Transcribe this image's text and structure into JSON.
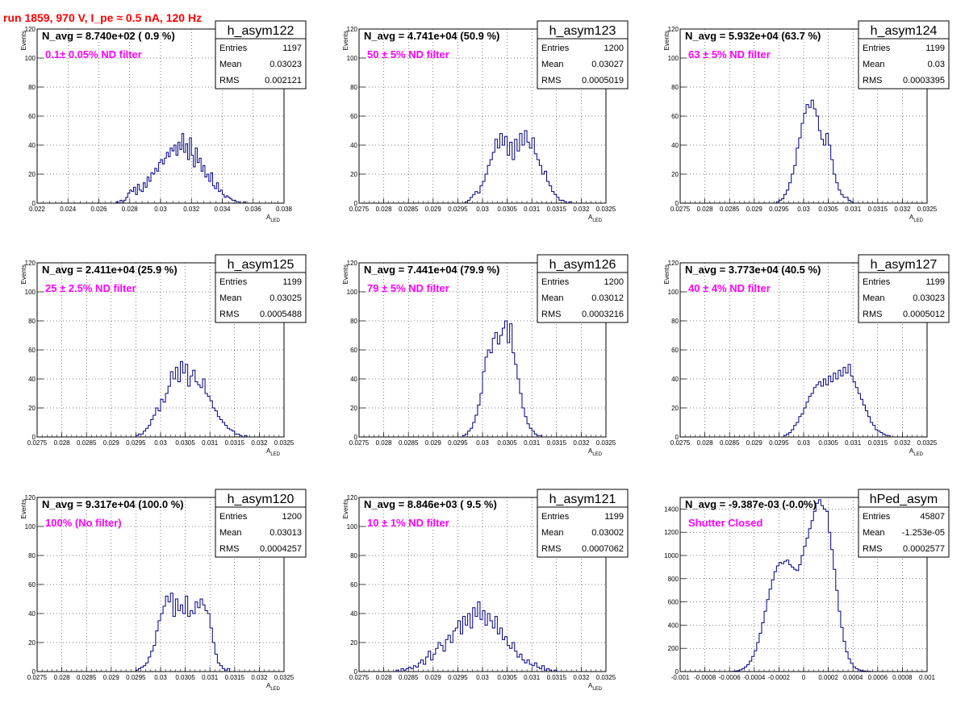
{
  "page_title": "run 1859,   970 V, I_pe ≈ 0.5 nA, 120 Hz",
  "stat_labels": {
    "entries": "Entries",
    "mean": "Mean",
    "rms": "RMS"
  },
  "colors": {
    "hist": "#000080",
    "title": "#ff0000",
    "filter": "#ff00ff",
    "grid": "#000000"
  },
  "chart_data": [
    {
      "type": "bar",
      "name": "h_asym122",
      "nav": "N_avg = 8.740e+02 ( 0.9 %)",
      "filter": "0.1± 0.05% ND filter",
      "entries": "1197",
      "mean": "0.03023",
      "rms": "0.002121",
      "xlim": [
        0.022,
        0.038
      ],
      "ylim": [
        0,
        120
      ],
      "xticks": [
        "0.022",
        "0.024",
        "0.026",
        "0.028",
        "0.03",
        "0.032",
        "0.034",
        "0.036",
        "0.038"
      ],
      "yticks": [
        "0",
        "20",
        "40",
        "60",
        "80",
        "100",
        "120"
      ],
      "xlabel_main": "A",
      "xlabel_sub": "LED",
      "ylabel": "Events",
      "values": [
        0,
        0,
        0,
        0,
        0,
        0,
        0,
        0,
        0,
        0,
        0,
        0,
        0,
        0,
        0,
        0,
        0,
        0,
        0,
        0,
        0,
        0,
        0,
        0,
        0,
        0,
        0,
        0,
        0,
        0,
        0,
        0,
        0,
        0,
        0,
        0,
        0,
        0,
        0,
        0,
        0,
        1,
        0,
        2,
        1,
        2,
        4,
        7,
        9,
        8,
        11,
        6,
        13,
        9,
        8,
        14,
        11,
        18,
        15,
        21,
        20,
        24,
        22,
        28,
        30,
        27,
        31,
        35,
        32,
        38,
        36,
        40,
        33,
        42,
        37,
        48,
        35,
        41,
        30,
        45,
        33,
        25,
        38,
        28,
        31,
        22,
        26,
        18,
        20,
        15,
        21,
        12,
        10,
        14,
        8,
        9,
        6,
        4,
        5,
        4,
        3,
        2,
        2,
        1,
        1,
        0,
        0,
        1,
        0,
        0,
        0,
        0,
        0,
        0,
        0,
        0,
        0,
        0,
        0,
        0,
        0,
        0,
        0,
        0,
        0,
        0,
        0,
        0
      ]
    },
    {
      "type": "bar",
      "name": "h_asym123",
      "nav": "N_avg = 4.741e+04 (50.9 %)",
      "filter": "50 ± 5% ND filter",
      "entries": "1200",
      "mean": "0.03027",
      "rms": "0.0005019",
      "xlim": [
        0.0275,
        0.0325
      ],
      "ylim": [
        0,
        120
      ],
      "xticks": [
        "0.0275",
        "0.028",
        "0.0285",
        "0.029",
        "0.0295",
        "0.03",
        "0.0305",
        "0.031",
        "0.0315",
        "0.032",
        "0.0325"
      ],
      "yticks": [
        "0",
        "20",
        "40",
        "60",
        "80",
        "100",
        "120"
      ],
      "xlabel_main": "A",
      "xlabel_sub": "LED",
      "ylabel": "Events",
      "values": [
        0,
        0,
        0,
        0,
        0,
        0,
        0,
        0,
        0,
        0,
        0,
        0,
        0,
        0,
        0,
        0,
        0,
        0,
        0,
        0,
        0,
        0,
        0,
        0,
        0,
        0,
        0,
        0,
        0,
        0,
        0,
        0,
        0,
        0,
        0,
        0,
        0,
        0,
        0,
        0,
        0,
        0,
        0,
        1,
        2,
        4,
        6,
        8,
        7,
        12,
        15,
        20,
        26,
        30,
        35,
        44,
        38,
        48,
        40,
        46,
        33,
        42,
        30,
        44,
        36,
        48,
        40,
        50,
        42,
        38,
        45,
        34,
        30,
        26,
        20,
        22,
        15,
        12,
        8,
        6,
        4,
        2,
        2,
        1,
        0,
        1,
        0,
        0,
        0,
        0,
        0,
        0,
        0,
        0,
        0,
        0,
        0,
        0,
        0,
        0
      ]
    },
    {
      "type": "bar",
      "name": "h_asym124",
      "nav": "N_avg = 5.932e+04 (63.7 %)",
      "filter": "63 ± 5% ND filter",
      "entries": "1199",
      "mean": "0.03",
      "rms": "0.0003395",
      "xlim": [
        0.0275,
        0.0325
      ],
      "ylim": [
        0,
        120
      ],
      "xticks": [
        "0.0275",
        "0.028",
        "0.0285",
        "0.029",
        "0.0295",
        "0.03",
        "0.0305",
        "0.031",
        "0.0315",
        "0.032",
        "0.0325"
      ],
      "yticks": [
        "0",
        "20",
        "40",
        "60",
        "80",
        "100",
        "120"
      ],
      "xlabel_main": "A",
      "xlabel_sub": "LED",
      "ylabel": "Events",
      "values": [
        0,
        0,
        0,
        0,
        0,
        0,
        0,
        0,
        0,
        0,
        0,
        0,
        0,
        0,
        0,
        0,
        0,
        0,
        0,
        0,
        0,
        0,
        0,
        0,
        0,
        0,
        0,
        0,
        0,
        0,
        0,
        0,
        0,
        0,
        0,
        0,
        0,
        0,
        0,
        1,
        2,
        3,
        6,
        9,
        14,
        20,
        26,
        38,
        45,
        55,
        62,
        68,
        66,
        71,
        65,
        60,
        50,
        44,
        40,
        48,
        40,
        30,
        20,
        14,
        9,
        6,
        4,
        4,
        2,
        1,
        0,
        0,
        0,
        0,
        0,
        0,
        0,
        0,
        0,
        0,
        0,
        0,
        0,
        0,
        0,
        0,
        0,
        0,
        0,
        0,
        0,
        0,
        0,
        0,
        0,
        0,
        0,
        0,
        0,
        0
      ]
    },
    {
      "type": "bar",
      "name": "h_asym125",
      "nav": "N_avg = 2.411e+04 (25.9 %)",
      "filter": "25 ± 2.5% ND filter",
      "entries": "1199",
      "mean": "0.03025",
      "rms": "0.0005488",
      "xlim": [
        0.0275,
        0.0325
      ],
      "ylim": [
        0,
        120
      ],
      "xticks": [
        "0.0275",
        "0.028",
        "0.0285",
        "0.029",
        "0.0295",
        "0.03",
        "0.0305",
        "0.031",
        "0.0315",
        "0.032",
        "0.0325"
      ],
      "yticks": [
        "0",
        "20",
        "40",
        "60",
        "80",
        "100",
        "120"
      ],
      "xlabel_main": "A",
      "xlabel_sub": "LED",
      "ylabel": "Events",
      "values": [
        0,
        0,
        0,
        0,
        0,
        0,
        0,
        0,
        0,
        0,
        0,
        0,
        0,
        0,
        0,
        0,
        0,
        0,
        0,
        0,
        0,
        0,
        0,
        0,
        0,
        0,
        0,
        0,
        0,
        0,
        0,
        0,
        0,
        0,
        0,
        0,
        0,
        0,
        0,
        0,
        1,
        2,
        2,
        4,
        6,
        8,
        12,
        15,
        20,
        18,
        26,
        24,
        30,
        35,
        45,
        40,
        48,
        38,
        52,
        44,
        50,
        35,
        42,
        46,
        38,
        36,
        34,
        40,
        30,
        28,
        25,
        20,
        18,
        14,
        12,
        10,
        8,
        6,
        5,
        4,
        2,
        2,
        1,
        0,
        1,
        0,
        0,
        0,
        0,
        0,
        0,
        0,
        0,
        0,
        0,
        0,
        0,
        0,
        0,
        0
      ]
    },
    {
      "type": "bar",
      "name": "h_asym126",
      "nav": "N_avg = 7.441e+04 (79.9 %)",
      "filter": "79 ± 5% ND filter",
      "entries": "1200",
      "mean": "0.03012",
      "rms": "0.0003216",
      "xlim": [
        0.0275,
        0.0325
      ],
      "ylim": [
        0,
        120
      ],
      "xticks": [
        "0.0275",
        "0.028",
        "0.0285",
        "0.029",
        "0.0295",
        "0.03",
        "0.0305",
        "0.031",
        "0.0315",
        "0.032",
        "0.0325"
      ],
      "yticks": [
        "0",
        "20",
        "40",
        "60",
        "80",
        "100",
        "120"
      ],
      "xlabel_main": "A",
      "xlabel_sub": "LED",
      "ylabel": "Events",
      "values": [
        0,
        0,
        0,
        0,
        0,
        0,
        0,
        0,
        0,
        0,
        0,
        0,
        0,
        0,
        0,
        0,
        0,
        0,
        0,
        0,
        0,
        0,
        0,
        0,
        0,
        0,
        0,
        0,
        0,
        0,
        0,
        0,
        0,
        0,
        0,
        0,
        0,
        0,
        0,
        0,
        0,
        0,
        1,
        2,
        4,
        6,
        10,
        15,
        22,
        30,
        45,
        55,
        60,
        58,
        68,
        72,
        64,
        70,
        75,
        80,
        65,
        78,
        58,
        50,
        40,
        30,
        20,
        14,
        9,
        6,
        4,
        2,
        1,
        1,
        0,
        0,
        0,
        0,
        0,
        0,
        0,
        0,
        0,
        0,
        0,
        0,
        0,
        0,
        0,
        0,
        0,
        0,
        0,
        0,
        0,
        0,
        0,
        0,
        0,
        0
      ]
    },
    {
      "type": "bar",
      "name": "h_asym127",
      "nav": "N_avg = 3.773e+04 (40.5 %)",
      "filter": "40 ± 4% ND filter",
      "entries": "1199",
      "mean": "0.03023",
      "rms": "0.0005012",
      "xlim": [
        0.0275,
        0.0325
      ],
      "ylim": [
        0,
        120
      ],
      "xticks": [
        "0.0275",
        "0.028",
        "0.0285",
        "0.029",
        "0.0295",
        "0.03",
        "0.0305",
        "0.031",
        "0.0315",
        "0.032",
        "0.0325"
      ],
      "yticks": [
        "0",
        "20",
        "40",
        "60",
        "80",
        "100",
        "120"
      ],
      "xlabel_main": "A",
      "xlabel_sub": "LED",
      "ylabel": "Events",
      "values": [
        0,
        0,
        0,
        0,
        0,
        0,
        0,
        0,
        0,
        0,
        0,
        0,
        0,
        0,
        0,
        0,
        0,
        0,
        0,
        0,
        0,
        0,
        0,
        0,
        0,
        0,
        0,
        0,
        0,
        0,
        0,
        0,
        0,
        0,
        0,
        0,
        0,
        0,
        0,
        0,
        0,
        0,
        1,
        2,
        3,
        5,
        8,
        10,
        14,
        16,
        20,
        24,
        28,
        30,
        34,
        36,
        38,
        35,
        40,
        36,
        42,
        38,
        44,
        40,
        46,
        42,
        48,
        44,
        50,
        42,
        38,
        34,
        30,
        26,
        22,
        18,
        14,
        10,
        8,
        5,
        4,
        3,
        2,
        1,
        1,
        0,
        0,
        0,
        0,
        0,
        0,
        0,
        0,
        0,
        0,
        0,
        0,
        0,
        0,
        0
      ]
    },
    {
      "type": "bar",
      "name": "h_asym120",
      "nav": "N_avg = 9.317e+04 (100.0 %)",
      "filter": "100% (No filter)",
      "entries": "1200",
      "mean": "0.03013",
      "rms": "0.0004257",
      "xlim": [
        0.0275,
        0.0325
      ],
      "ylim": [
        0,
        120
      ],
      "xticks": [
        "0.0275",
        "0.028",
        "0.0285",
        "0.029",
        "0.0295",
        "0.03",
        "0.0305",
        "0.031",
        "0.0315",
        "0.032",
        "0.0325"
      ],
      "yticks": [
        "0",
        "20",
        "40",
        "60",
        "80",
        "100",
        "120"
      ],
      "xlabel_main": "A",
      "xlabel_sub": "LED",
      "ylabel": "Events",
      "values": [
        0,
        0,
        0,
        0,
        0,
        0,
        0,
        0,
        0,
        0,
        0,
        0,
        0,
        0,
        0,
        0,
        0,
        0,
        0,
        0,
        0,
        0,
        0,
        0,
        0,
        0,
        0,
        0,
        0,
        0,
        0,
        0,
        0,
        0,
        0,
        0,
        0,
        0,
        0,
        0,
        1,
        2,
        3,
        4,
        6,
        10,
        14,
        18,
        28,
        35,
        40,
        45,
        52,
        48,
        54,
        38,
        50,
        42,
        46,
        40,
        52,
        38,
        42,
        40,
        48,
        44,
        50,
        46,
        42,
        40,
        30,
        20,
        12,
        6,
        4,
        2,
        1,
        2,
        0,
        0,
        0,
        0,
        0,
        0,
        0,
        0,
        0,
        0,
        0,
        0,
        0,
        0,
        0,
        0,
        0,
        0,
        0,
        0,
        0,
        0
      ]
    },
    {
      "type": "bar",
      "name": "h_asym121",
      "nav": "N_avg = 8.846e+03 ( 9.5 %)",
      "filter": "10 ± 1% ND filter",
      "entries": "1199",
      "mean": "0.03002",
      "rms": "0.0007062",
      "xlim": [
        0.0275,
        0.0325
      ],
      "ylim": [
        0,
        120
      ],
      "xticks": [
        "0.0275",
        "0.028",
        "0.0285",
        "0.029",
        "0.0295",
        "0.03",
        "0.0305",
        "0.031",
        "0.0315",
        "0.032",
        "0.0325"
      ],
      "yticks": [
        "0",
        "20",
        "40",
        "60",
        "80",
        "100",
        "120"
      ],
      "xlabel_main": "A",
      "xlabel_sub": "LED",
      "ylabel": "Events",
      "values": [
        0,
        0,
        0,
        0,
        0,
        0,
        0,
        0,
        0,
        0,
        0,
        0,
        0,
        0,
        0,
        1,
        0,
        2,
        1,
        2,
        3,
        2,
        4,
        3,
        6,
        8,
        5,
        10,
        14,
        8,
        12,
        16,
        20,
        18,
        14,
        22,
        25,
        20,
        28,
        30,
        35,
        26,
        38,
        32,
        40,
        30,
        44,
        38,
        48,
        36,
        42,
        32,
        40,
        35,
        30,
        38,
        26,
        30,
        22,
        24,
        18,
        16,
        20,
        14,
        10,
        12,
        8,
        6,
        8,
        5,
        4,
        6,
        3,
        2,
        4,
        1,
        2,
        1,
        0,
        1,
        0,
        0,
        0,
        0,
        0,
        0,
        0,
        0,
        0,
        0,
        0,
        0,
        0,
        0,
        0,
        0,
        0,
        0,
        0,
        0
      ]
    },
    {
      "type": "bar",
      "name": "hPed_asym",
      "nav": "N_avg = -9.387e-03 (-0.0%)",
      "filter": "Shutter Closed",
      "entries": "45807",
      "mean": "-1.253e-05",
      "rms": "0.0002577",
      "xlim": [
        -0.001,
        0.001
      ],
      "ylim": [
        0,
        1500
      ],
      "xticks": [
        "-0.001",
        "-0.0008",
        "-0.0006",
        "-0.0004",
        "-0.0002",
        "0",
        "0.0002",
        "0.0004",
        "0.0006",
        "0.0008",
        "0.001"
      ],
      "yticks": [
        "0",
        "200",
        "400",
        "600",
        "800",
        "1000",
        "1200",
        "1400"
      ],
      "xlabel_main": "",
      "xlabel_sub": "",
      "ylabel": "",
      "values": [
        0,
        0,
        0,
        0,
        0,
        0,
        0,
        0,
        0,
        0,
        0,
        0,
        0,
        0,
        0,
        0,
        0,
        0,
        0,
        0,
        1,
        2,
        4,
        8,
        15,
        25,
        40,
        60,
        90,
        130,
        180,
        250,
        330,
        420,
        520,
        620,
        710,
        790,
        860,
        910,
        940,
        930,
        950,
        960,
        920,
        900,
        880,
        870,
        920,
        1000,
        1080,
        1150,
        1230,
        1300,
        1380,
        1450,
        1480,
        1430,
        1400,
        1380,
        1200,
        1050,
        880,
        700,
        520,
        380,
        260,
        170,
        110,
        70,
        40,
        25,
        15,
        8,
        5,
        3,
        2,
        1,
        0,
        0,
        0,
        0,
        0,
        0,
        0,
        0,
        0,
        0,
        0,
        0,
        0,
        0,
        0,
        0,
        0,
        0,
        0,
        0,
        0,
        0
      ]
    }
  ]
}
